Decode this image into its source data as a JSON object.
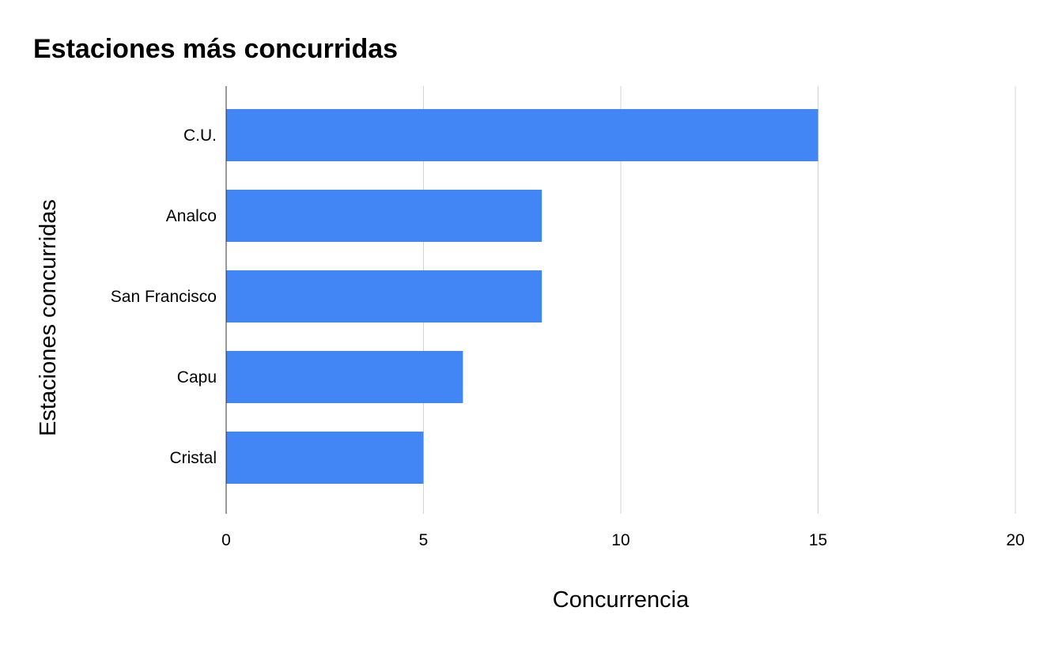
{
  "chart_data": {
    "type": "bar",
    "orientation": "horizontal",
    "title": "Estaciones más concurridas",
    "xlabel": "Concurrencia",
    "ylabel": "Estaciones concurridas",
    "categories": [
      "C.U.",
      "Analco",
      "San Francisco",
      "Capu",
      "Cristal"
    ],
    "values": [
      15,
      8,
      8,
      6,
      5
    ],
    "xlim": [
      0,
      20
    ],
    "xticks": [
      "0",
      "5",
      "10",
      "15",
      "20"
    ],
    "grid": true,
    "legend": "none",
    "bar_color": "#4285f4"
  }
}
